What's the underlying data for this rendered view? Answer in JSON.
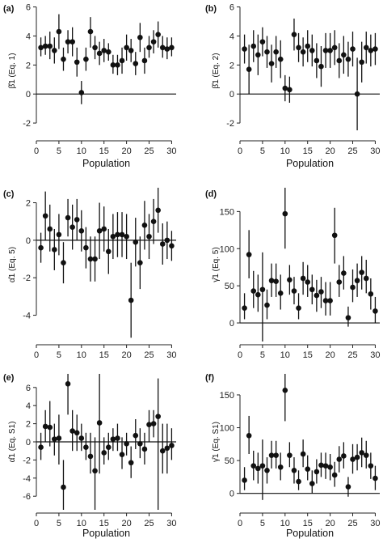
{
  "chart_data": [
    {
      "type": "scatter",
      "panel_label": "(a)",
      "xlabel": "Population",
      "ylabel": "β̂1 (Eq. 1)",
      "xlim": [
        0,
        31
      ],
      "ylim": [
        -3,
        6.2
      ],
      "xticks": [
        0,
        5,
        10,
        15,
        20,
        25,
        30
      ],
      "yticks": [
        -2,
        0,
        2,
        4,
        6
      ],
      "x": [
        1,
        2,
        3,
        4,
        5,
        6,
        7,
        8,
        9,
        10,
        11,
        12,
        13,
        14,
        15,
        16,
        17,
        18,
        19,
        20,
        21,
        22,
        23,
        24,
        25,
        26,
        27,
        28,
        29,
        30
      ],
      "y": [
        3.2,
        3.3,
        3.3,
        3.0,
        4.3,
        2.4,
        3.6,
        3.6,
        2.2,
        0.1,
        2.4,
        4.3,
        3.2,
        2.8,
        3.0,
        2.9,
        2.0,
        2.0,
        2.3,
        3.2,
        3.0,
        2.1,
        3.9,
        2.3,
        3.2,
        3.6,
        4.1,
        3.2,
        3.1,
        3.2
      ],
      "err_low": [
        2.6,
        2.7,
        2.4,
        2.1,
        3.1,
        1.6,
        2.8,
        2.6,
        1.2,
        -0.7,
        1.6,
        3.2,
        2.4,
        2.0,
        2.2,
        2.3,
        1.4,
        1.3,
        1.4,
        2.3,
        2.2,
        1.3,
        2.9,
        1.4,
        2.5,
        2.8,
        3.2,
        2.5,
        2.4,
        2.6
      ],
      "err_high": [
        3.9,
        4.0,
        4.3,
        3.9,
        5.5,
        3.2,
        4.4,
        4.6,
        3.2,
        0.9,
        3.2,
        5.3,
        4.0,
        3.6,
        3.8,
        3.5,
        2.7,
        2.7,
        3.2,
        4.1,
        3.8,
        2.9,
        4.9,
        3.2,
        4.0,
        4.4,
        5.0,
        4.0,
        3.9,
        3.9
      ]
    },
    {
      "type": "scatter",
      "panel_label": "(b)",
      "xlabel": "Population",
      "ylabel": "β̂1 (Eq. 2)",
      "xlim": [
        0,
        31
      ],
      "ylim": [
        -3,
        6.2
      ],
      "xticks": [
        0,
        5,
        10,
        15,
        20,
        25,
        30
      ],
      "yticks": [
        -2,
        0,
        2,
        4,
        6
      ],
      "x": [
        1,
        2,
        3,
        4,
        5,
        6,
        7,
        8,
        9,
        10,
        11,
        12,
        13,
        14,
        15,
        16,
        17,
        18,
        19,
        20,
        21,
        22,
        23,
        24,
        25,
        26,
        27,
        28,
        29,
        30
      ],
      "y": [
        3.1,
        1.7,
        3.3,
        2.7,
        3.6,
        2.9,
        2.1,
        2.9,
        2.4,
        0.4,
        0.3,
        4.1,
        3.2,
        2.9,
        3.3,
        3.0,
        2.3,
        1.9,
        3.0,
        3.0,
        3.2,
        2.3,
        2.7,
        2.4,
        3.1,
        0.0,
        2.2,
        3.2,
        3.0,
        3.1
      ],
      "err_low": [
        2.1,
        0.0,
        2.2,
        1.3,
        2.6,
        1.8,
        0.8,
        1.8,
        1.1,
        -0.5,
        -0.6,
        3.0,
        2.2,
        1.9,
        2.2,
        1.9,
        1.1,
        0.5,
        1.8,
        1.8,
        2.0,
        1.1,
        1.4,
        1.2,
        1.9,
        -2.5,
        0.8,
        2.1,
        1.9,
        2.0
      ],
      "err_high": [
        4.1,
        3.4,
        4.4,
        4.1,
        4.6,
        4.0,
        3.4,
        4.0,
        3.7,
        1.3,
        1.2,
        5.2,
        4.2,
        3.9,
        4.4,
        4.1,
        3.5,
        3.3,
        4.2,
        4.2,
        4.4,
        3.5,
        4.0,
        3.6,
        4.3,
        2.5,
        3.6,
        4.3,
        4.1,
        4.2
      ]
    },
    {
      "type": "scatter",
      "panel_label": "(c)",
      "xlabel": "",
      "ylabel": "α̂1 (Eq. 5)",
      "xlim": [
        0,
        31
      ],
      "ylim": [
        -5.4,
        2.8
      ],
      "xticks": [
        0,
        5,
        10,
        15,
        20,
        25,
        30
      ],
      "yticks": [
        -4,
        -2,
        0,
        2
      ],
      "x": [
        1,
        2,
        3,
        4,
        5,
        6,
        7,
        8,
        9,
        10,
        11,
        12,
        13,
        14,
        15,
        16,
        17,
        18,
        19,
        20,
        21,
        22,
        23,
        24,
        25,
        26,
        27,
        28,
        29,
        30
      ],
      "y": [
        -0.4,
        1.3,
        0.6,
        -0.5,
        0.3,
        -1.2,
        1.2,
        0.7,
        1.1,
        0.5,
        -0.4,
        -1.0,
        -1.0,
        0.5,
        0.6,
        -0.6,
        0.2,
        0.3,
        0.3,
        0.2,
        -3.2,
        -0.1,
        -1.2,
        0.8,
        0.2,
        1.0,
        1.6,
        -0.2,
        0.0,
        -0.3
      ],
      "err_low": [
        -1.2,
        0.0,
        -0.6,
        -1.6,
        -0.8,
        -2.3,
        0.2,
        -0.5,
        0.0,
        -0.6,
        -1.5,
        -2.2,
        -2.2,
        -1.0,
        -0.6,
        -1.8,
        -1.0,
        -0.9,
        -0.9,
        -1.0,
        -5.2,
        -1.4,
        -2.6,
        -0.5,
        -1.0,
        -0.2,
        0.4,
        -1.3,
        -1.0,
        -1.1
      ],
      "err_high": [
        0.4,
        2.6,
        1.9,
        0.6,
        1.4,
        -0.1,
        2.2,
        1.9,
        2.2,
        1.6,
        0.7,
        0.2,
        0.2,
        2.0,
        1.8,
        0.6,
        1.4,
        1.5,
        1.5,
        1.4,
        -1.2,
        1.2,
        0.2,
        2.1,
        1.4,
        2.2,
        2.8,
        0.9,
        1.0,
        0.5
      ]
    },
    {
      "type": "scatter",
      "panel_label": "(d)",
      "xlabel": "",
      "ylabel": "γ̂1 (Eq. 5)",
      "xlim": [
        0,
        31
      ],
      "ylim": [
        -25,
        182
      ],
      "xticks": [
        0,
        5,
        10,
        15,
        20,
        25,
        30
      ],
      "yticks": [
        0,
        50,
        100,
        150
      ],
      "x": [
        1,
        2,
        3,
        4,
        5,
        6,
        7,
        8,
        9,
        10,
        11,
        12,
        13,
        14,
        15,
        16,
        17,
        18,
        19,
        20,
        21,
        22,
        23,
        24,
        25,
        26,
        27,
        28,
        29,
        30
      ],
      "y": [
        20,
        92,
        43,
        38,
        45,
        24,
        57,
        56,
        40,
        147,
        58,
        43,
        20,
        60,
        55,
        45,
        37,
        42,
        30,
        30,
        118,
        55,
        67,
        7,
        48,
        57,
        68,
        60,
        39,
        16
      ],
      "err_low": [
        5,
        60,
        20,
        15,
        -30,
        5,
        35,
        35,
        18,
        100,
        38,
        25,
        5,
        38,
        35,
        25,
        15,
        20,
        10,
        10,
        80,
        35,
        45,
        -5,
        28,
        35,
        45,
        40,
        18,
        0
      ],
      "err_high": [
        40,
        125,
        70,
        65,
        95,
        45,
        80,
        80,
        65,
        182,
        78,
        62,
        40,
        82,
        78,
        65,
        58,
        62,
        55,
        55,
        155,
        78,
        90,
        22,
        72,
        80,
        90,
        85,
        60,
        35
      ]
    },
    {
      "type": "scatter",
      "panel_label": "(e)",
      "xlabel": "Population",
      "ylabel": "α̂1 (Eq. S1)",
      "xlim": [
        0,
        31
      ],
      "ylim": [
        -7.5,
        7.5
      ],
      "xticks": [
        0,
        5,
        10,
        15,
        20,
        25,
        30
      ],
      "yticks": [
        -6,
        -4,
        -2,
        0,
        2,
        4,
        6
      ],
      "x": [
        1,
        2,
        3,
        4,
        5,
        6,
        7,
        8,
        9,
        10,
        11,
        12,
        13,
        14,
        15,
        16,
        17,
        18,
        19,
        20,
        21,
        22,
        23,
        24,
        25,
        26,
        27,
        28,
        29,
        30
      ],
      "y": [
        -0.6,
        1.7,
        1.6,
        0.3,
        0.4,
        -5.0,
        6.4,
        1.2,
        1.0,
        0.4,
        -0.6,
        -1.6,
        -3.2,
        2.1,
        -1.2,
        -0.6,
        0.3,
        0.4,
        -1.4,
        -0.2,
        -2.3,
        0.7,
        -0.2,
        -0.8,
        1.9,
        2.0,
        2.8,
        -1.0,
        -0.7,
        -0.4
      ],
      "err_low": [
        -2.0,
        0.0,
        -0.5,
        -1.5,
        -2.5,
        -7.5,
        3.0,
        -1.0,
        -1.0,
        -1.0,
        -2.0,
        -3.5,
        -7.5,
        -3.5,
        -2.5,
        -2.0,
        -1.0,
        -1.0,
        -3.0,
        -1.5,
        -4.0,
        -0.8,
        -1.8,
        -2.5,
        0.0,
        0.5,
        -7.5,
        -3.5,
        -3.5,
        -2.0
      ],
      "err_high": [
        1.0,
        3.5,
        4.5,
        2.0,
        3.0,
        -2.0,
        7.5,
        3.5,
        3.0,
        2.0,
        1.0,
        1.0,
        0.5,
        7.5,
        0.5,
        1.0,
        1.5,
        2.0,
        0.5,
        1.0,
        -0.5,
        2.5,
        1.5,
        1.0,
        3.5,
        3.5,
        7.0,
        2.0,
        2.0,
        1.5
      ]
    },
    {
      "type": "scatter",
      "panel_label": "(f)",
      "xlabel": "Population",
      "ylabel": "γ̂1 (Eq. S1)",
      "xlim": [
        0,
        31
      ],
      "ylim": [
        -25,
        182
      ],
      "xticks": [
        0,
        5,
        10,
        15,
        20,
        25,
        30
      ],
      "yticks": [
        0,
        50,
        100,
        150
      ],
      "x": [
        1,
        2,
        3,
        4,
        5,
        6,
        7,
        8,
        9,
        10,
        11,
        12,
        13,
        14,
        15,
        16,
        17,
        18,
        19,
        20,
        21,
        22,
        23,
        24,
        25,
        26,
        27,
        28,
        29,
        30
      ],
      "y": [
        20,
        88,
        42,
        38,
        42,
        35,
        58,
        58,
        40,
        157,
        58,
        35,
        18,
        60,
        37,
        15,
        33,
        43,
        42,
        40,
        28,
        52,
        57,
        10,
        52,
        55,
        62,
        58,
        42,
        23
      ],
      "err_low": [
        5,
        60,
        20,
        15,
        -10,
        15,
        38,
        38,
        20,
        110,
        40,
        15,
        5,
        40,
        20,
        0,
        15,
        25,
        22,
        20,
        10,
        32,
        38,
        -5,
        30,
        35,
        40,
        38,
        22,
        5
      ],
      "err_high": [
        40,
        118,
        65,
        62,
        82,
        55,
        80,
        80,
        62,
        182,
        78,
        55,
        35,
        82,
        58,
        35,
        52,
        62,
        62,
        60,
        48,
        72,
        78,
        25,
        75,
        75,
        85,
        80,
        62,
        42
      ]
    }
  ]
}
